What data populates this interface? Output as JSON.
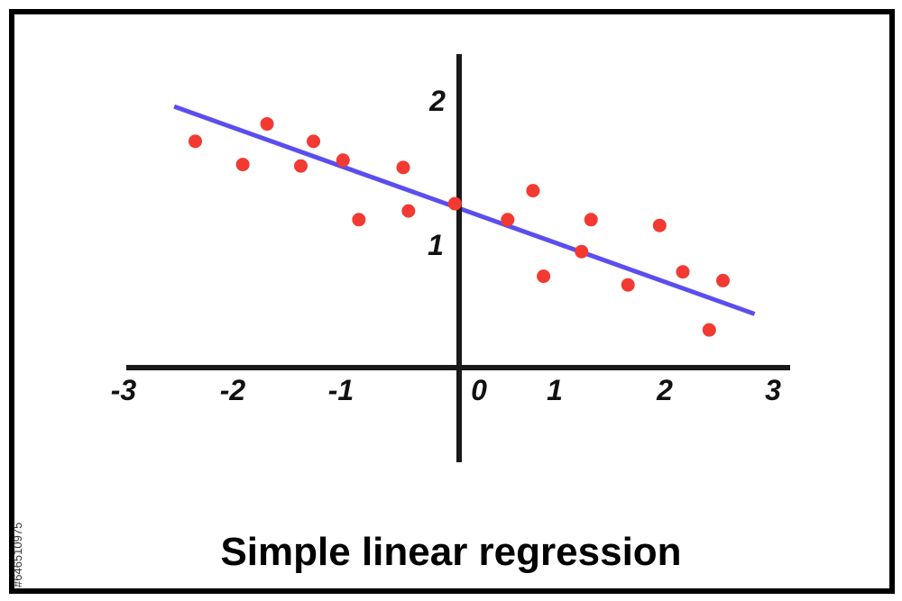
{
  "chart_data": {
    "type": "scatter",
    "title": "Simple linear regression",
    "xlabel": "",
    "ylabel": "",
    "xlim": [
      -3,
      3
    ],
    "ylim": [
      -0.6,
      2.3
    ],
    "x_ticks": [
      "-3",
      "-2",
      "-1",
      "0",
      "1",
      "2",
      "3"
    ],
    "y_ticks": [
      "1",
      "2"
    ],
    "grid": false,
    "legend": "none",
    "points": [
      {
        "x": -2.5,
        "y": 1.56
      },
      {
        "x": -2.05,
        "y": 1.4
      },
      {
        "x": -1.82,
        "y": 1.68
      },
      {
        "x": -1.5,
        "y": 1.39
      },
      {
        "x": -1.38,
        "y": 1.56
      },
      {
        "x": -1.1,
        "y": 1.43
      },
      {
        "x": -0.95,
        "y": 1.02
      },
      {
        "x": -0.53,
        "y": 1.38
      },
      {
        "x": -0.48,
        "y": 1.08
      },
      {
        "x": -0.04,
        "y": 1.13
      },
      {
        "x": 0.46,
        "y": 1.02
      },
      {
        "x": 0.7,
        "y": 1.22
      },
      {
        "x": 0.8,
        "y": 0.63
      },
      {
        "x": 1.16,
        "y": 0.8
      },
      {
        "x": 1.25,
        "y": 1.02
      },
      {
        "x": 1.6,
        "y": 0.57
      },
      {
        "x": 1.9,
        "y": 0.98
      },
      {
        "x": 2.12,
        "y": 0.66
      },
      {
        "x": 2.37,
        "y": 0.26
      },
      {
        "x": 2.5,
        "y": 0.6
      }
    ],
    "regression_line": {
      "x": [
        -2.7,
        2.8
      ],
      "y": [
        1.8,
        0.37
      ]
    },
    "colors": {
      "points": "#f23a32",
      "line": "#5a4ef0",
      "axes": "#1a1a1a"
    }
  },
  "watermark": {
    "stock_id": "#646510975"
  }
}
